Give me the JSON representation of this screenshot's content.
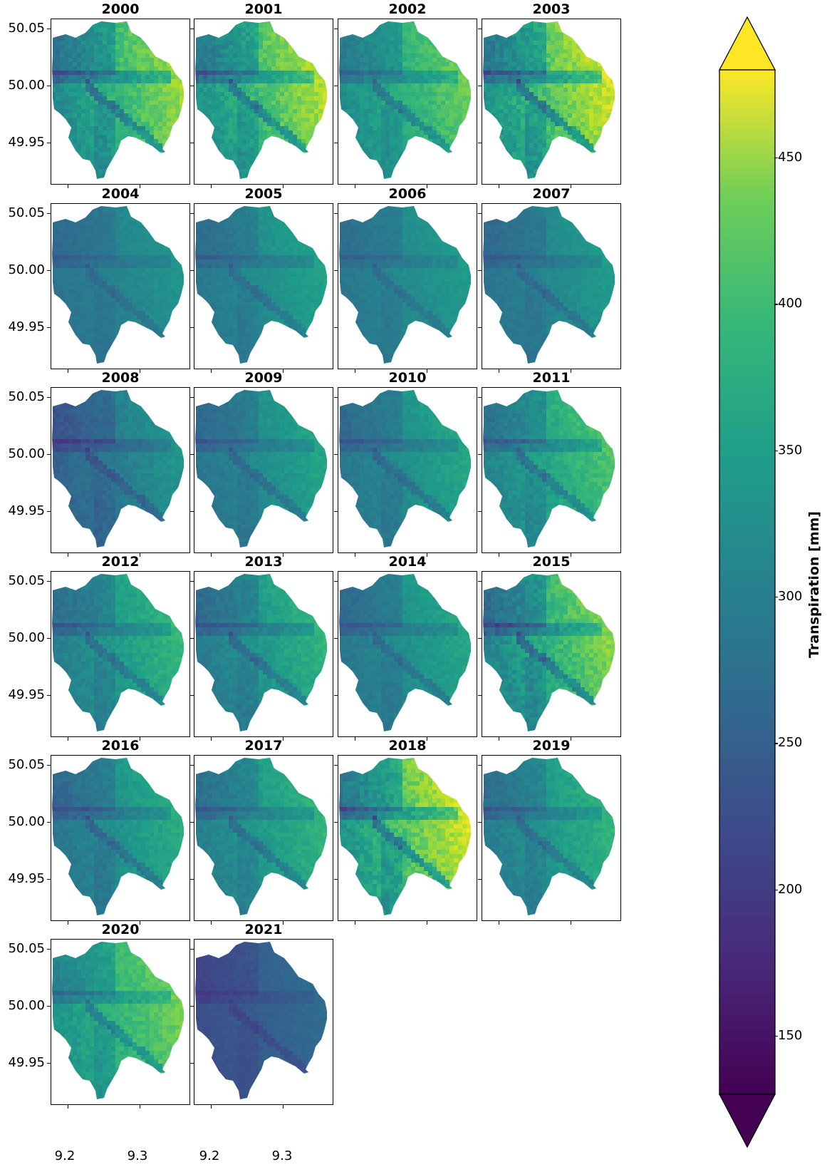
{
  "chart_data": {
    "type": "heatmap",
    "variable": "Transpiration [mm]",
    "colormap": "viridis",
    "color_range": [
      130,
      480
    ],
    "colorbar": {
      "label": "Transpiration [mm]",
      "ticks": [
        150,
        200,
        250,
        300,
        350,
        400,
        450
      ],
      "extend": "both"
    },
    "y_ticks": [
      "50.05",
      "50.00",
      "49.95"
    ],
    "x_ticks": [
      "9.2",
      "9.3"
    ],
    "panels": [
      {
        "year": "2000",
        "low": 200,
        "high": 445
      },
      {
        "year": "2001",
        "low": 205,
        "high": 460
      },
      {
        "year": "2002",
        "low": 225,
        "high": 415
      },
      {
        "year": "2003",
        "low": 195,
        "high": 480
      },
      {
        "year": "2004",
        "low": 225,
        "high": 320
      },
      {
        "year": "2005",
        "low": 225,
        "high": 340
      },
      {
        "year": "2006",
        "low": 230,
        "high": 330
      },
      {
        "year": "2007",
        "low": 220,
        "high": 330
      },
      {
        "year": "2008",
        "low": 185,
        "high": 325
      },
      {
        "year": "2009",
        "low": 215,
        "high": 345
      },
      {
        "year": "2010",
        "low": 215,
        "high": 350
      },
      {
        "year": "2011",
        "low": 215,
        "high": 400
      },
      {
        "year": "2012",
        "low": 215,
        "high": 375
      },
      {
        "year": "2013",
        "low": 210,
        "high": 370
      },
      {
        "year": "2014",
        "low": 215,
        "high": 350
      },
      {
        "year": "2015",
        "low": 185,
        "high": 440
      },
      {
        "year": "2016",
        "low": 205,
        "high": 360
      },
      {
        "year": "2017",
        "low": 220,
        "high": 370
      },
      {
        "year": "2018",
        "low": 200,
        "high": 480
      },
      {
        "year": "2019",
        "low": 215,
        "high": 370
      },
      {
        "year": "2020",
        "low": 240,
        "high": 420
      },
      {
        "year": "2021",
        "low": 185,
        "high": 260
      }
    ]
  }
}
